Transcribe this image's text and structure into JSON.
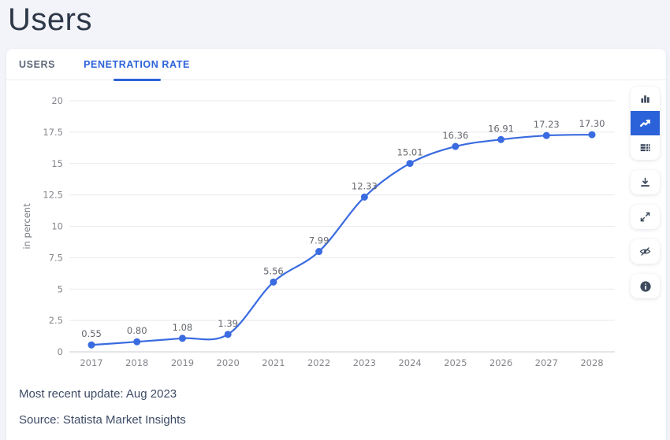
{
  "page": {
    "title": "Users"
  },
  "tabs": {
    "items": [
      {
        "label": "USERS",
        "active": false
      },
      {
        "label": "PENETRATION RATE",
        "active": true
      }
    ]
  },
  "toolbar": {
    "items": [
      {
        "name": "bar-chart-button",
        "icon": "bar-chart-icon",
        "active": false,
        "group": 1
      },
      {
        "name": "line-chart-button",
        "icon": "line-chart-icon",
        "active": true,
        "group": 1
      },
      {
        "name": "data-table-button",
        "icon": "table-icon",
        "active": false,
        "group": 1
      },
      {
        "name": "download-button",
        "icon": "download-icon",
        "active": false,
        "group": 2
      },
      {
        "name": "fullscreen-button",
        "icon": "expand-icon",
        "active": false,
        "group": 3
      },
      {
        "name": "hide-labels-button",
        "icon": "eye-off-icon",
        "active": false,
        "group": 4
      },
      {
        "name": "info-button",
        "icon": "info-icon",
        "active": false,
        "group": 5
      }
    ]
  },
  "chart_data": {
    "type": "line",
    "title": "Penetration Rate",
    "categories": [
      "2017",
      "2018",
      "2019",
      "2020",
      "2021",
      "2022",
      "2023",
      "2024",
      "2025",
      "2026",
      "2027",
      "2028"
    ],
    "values": [
      0.55,
      0.8,
      1.08,
      1.39,
      5.56,
      7.99,
      12.33,
      15.01,
      16.36,
      16.91,
      17.23,
      17.3
    ],
    "xlabel": "",
    "ylabel": "in percent",
    "ylim": [
      0,
      20
    ],
    "yticks": [
      0,
      2.5,
      5,
      7.5,
      10,
      12.5,
      15,
      17.5,
      20
    ],
    "grid": true,
    "data_labels": true,
    "legend": "none",
    "series_color": "#3a6be0"
  },
  "footer": {
    "update": "Most recent update: Aug 2023",
    "source": "Source: Statista Market Insights"
  },
  "colors": {
    "accent": "#2c62d9",
    "line": "#3a6be0",
    "background": "#f3f4f9",
    "card": "#ffffff",
    "icon": "#3d4a5c",
    "footer_text": "#3d4b66"
  }
}
